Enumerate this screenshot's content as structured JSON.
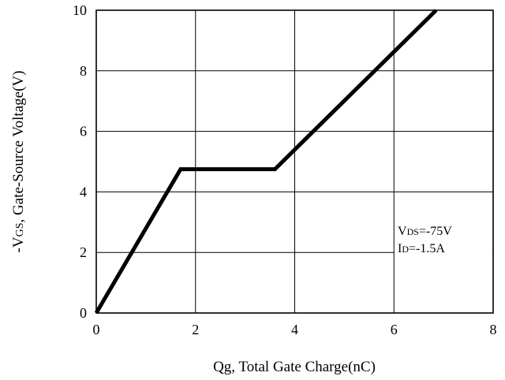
{
  "chart_data": {
    "type": "line",
    "title": "",
    "xlabel": "Qg, Total Gate Charge(nC)",
    "ylabel": {
      "prefix": "-V",
      "sub": "GS",
      "suffix": ", Gate-Source Voltage(V)"
    },
    "xlim": [
      0,
      8
    ],
    "ylim": [
      0,
      10
    ],
    "xticks": [
      0,
      2,
      4,
      6,
      8
    ],
    "yticks": [
      0,
      2,
      4,
      6,
      8,
      10
    ],
    "grid": true,
    "series": [
      {
        "x": [
          0,
          1.7,
          3.6,
          6.85
        ],
        "y": [
          0,
          4.75,
          4.75,
          10
        ]
      }
    ],
    "annotations": [
      {
        "main": "V",
        "sub": "DS",
        "rest": "=-75V"
      },
      {
        "main": "I",
        "sub": "D",
        "rest": "=-1.5A"
      }
    ]
  }
}
